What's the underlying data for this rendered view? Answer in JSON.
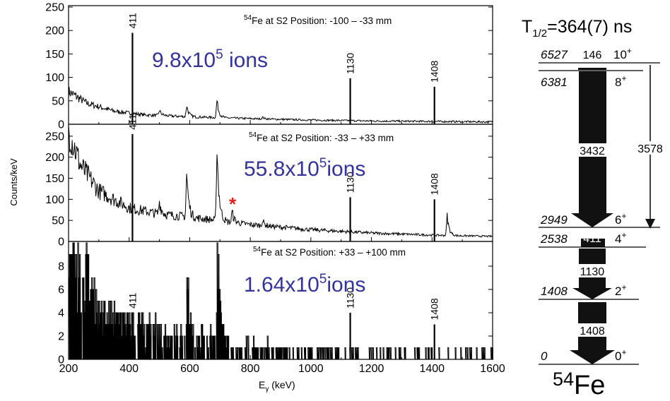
{
  "figure": {
    "y_axis_label": "Counts/keV",
    "x_axis_label_main": "E",
    "x_axis_label_sub": "γ",
    "x_axis_label_unit": " (keV)"
  },
  "colors": {
    "ion_text": "#33339a",
    "asterisk": "#e0201c",
    "spectrum": "#000000",
    "level_arrow": "#111111"
  },
  "chart_data": [
    {
      "type": "line",
      "panel": "top",
      "title_sup": "54",
      "title_text": "Fe at S2 Position:  -100 – -33 mm",
      "ions_base": "9.8x10",
      "ions_exp": "5",
      "ions_suffix": " ions",
      "xlim": [
        200,
        1600
      ],
      "ylim": [
        0,
        250
      ],
      "yticks": [
        0,
        50,
        100,
        150,
        200,
        250
      ],
      "peaks": [
        {
          "x": 411,
          "y": 195,
          "label": "411"
        },
        {
          "x": 1130,
          "y": 98,
          "label": "1130"
        },
        {
          "x": 1408,
          "y": 80,
          "label": "1408"
        }
      ],
      "features": [
        {
          "x": 500,
          "y": 30
        },
        {
          "x": 590,
          "y": 40
        },
        {
          "x": 690,
          "y": 50
        },
        {
          "x": 840,
          "y": 15
        }
      ],
      "background": [
        [
          200,
          70
        ],
        [
          260,
          45
        ],
        [
          350,
          28
        ],
        [
          450,
          20
        ],
        [
          600,
          16
        ],
        [
          800,
          12
        ],
        [
          1000,
          9
        ],
        [
          1200,
          7
        ],
        [
          1400,
          6
        ],
        [
          1600,
          5
        ]
      ]
    },
    {
      "type": "line",
      "panel": "middle",
      "title_sup": "54",
      "title_text": "Fe at S2 Position:  -33 – +33 mm",
      "ions_base": "55.8x10",
      "ions_exp": "5",
      "ions_suffix": "ions",
      "asterisk": "*",
      "asterisk_x": 730,
      "asterisk_y": 100,
      "xlim": [
        200,
        1600
      ],
      "ylim": [
        0,
        275
      ],
      "yticks": [
        0,
        50,
        100,
        150,
        200,
        250
      ],
      "peaks": [
        {
          "x": 411,
          "y": 255,
          "label": "411"
        },
        {
          "x": 1130,
          "y": 105,
          "label": "1130"
        },
        {
          "x": 1408,
          "y": 100,
          "label": "1408"
        }
      ],
      "features": [
        {
          "x": 500,
          "y": 95
        },
        {
          "x": 590,
          "y": 160
        },
        {
          "x": 690,
          "y": 225
        },
        {
          "x": 740,
          "y": 70
        },
        {
          "x": 840,
          "y": 50
        },
        {
          "x": 1450,
          "y": 60
        }
      ],
      "background": [
        [
          200,
          265
        ],
        [
          240,
          180
        ],
        [
          300,
          120
        ],
        [
          400,
          80
        ],
        [
          500,
          65
        ],
        [
          600,
          58
        ],
        [
          800,
          40
        ],
        [
          1000,
          28
        ],
        [
          1200,
          20
        ],
        [
          1400,
          15
        ],
        [
          1600,
          12
        ]
      ]
    },
    {
      "type": "line",
      "panel": "bottom",
      "title_sup": "54",
      "title_text": "Fe at S2 Position:  +33 – +100 mm",
      "ions_base": "1.64x10",
      "ions_exp": "5",
      "ions_suffix": "ions",
      "xlim": [
        200,
        1600
      ],
      "ylim": [
        0,
        10
      ],
      "yticks": [
        0,
        2,
        4,
        6,
        8
      ],
      "xticks": [
        200,
        400,
        600,
        800,
        1000,
        1200,
        1400,
        1600
      ],
      "peaks": [
        {
          "x": 411,
          "y": 4,
          "label": "411"
        },
        {
          "x": 1130,
          "y": 4,
          "label": "1130"
        },
        {
          "x": 1408,
          "y": 3,
          "label": "1408"
        }
      ],
      "features": [
        {
          "x": 590,
          "y": 6
        },
        {
          "x": 690,
          "y": 8
        }
      ],
      "background": [
        [
          200,
          6
        ],
        [
          260,
          4
        ],
        [
          350,
          2.5
        ],
        [
          450,
          2
        ],
        [
          600,
          1.5
        ],
        [
          800,
          1
        ],
        [
          1000,
          0.6
        ],
        [
          1200,
          0.4
        ],
        [
          1600,
          0.2
        ]
      ]
    }
  ],
  "level_scheme": {
    "half_life": "T",
    "half_life_sub": "1/2",
    "half_life_value": "=364(7) ns",
    "nucleus_mass": "54",
    "nucleus_symbol": "Fe",
    "levels": [
      {
        "energy": "6527",
        "spin": "10",
        "parity": "+",
        "top": 146
      },
      {
        "energy": "6381",
        "spin": "8",
        "parity": "+",
        "top": 0
      },
      {
        "energy": "2949",
        "spin": "6",
        "parity": "+",
        "top": 0
      },
      {
        "energy": "2538",
        "spin": "4",
        "parity": "+",
        "top": 0
      },
      {
        "energy": "1408",
        "spin": "2",
        "parity": "+",
        "top": 0
      },
      {
        "energy": "0",
        "spin": "0",
        "parity": "+",
        "top": 0
      }
    ],
    "transitions": [
      "146",
      "3432",
      "411",
      "1130",
      "1408",
      "3578"
    ]
  }
}
